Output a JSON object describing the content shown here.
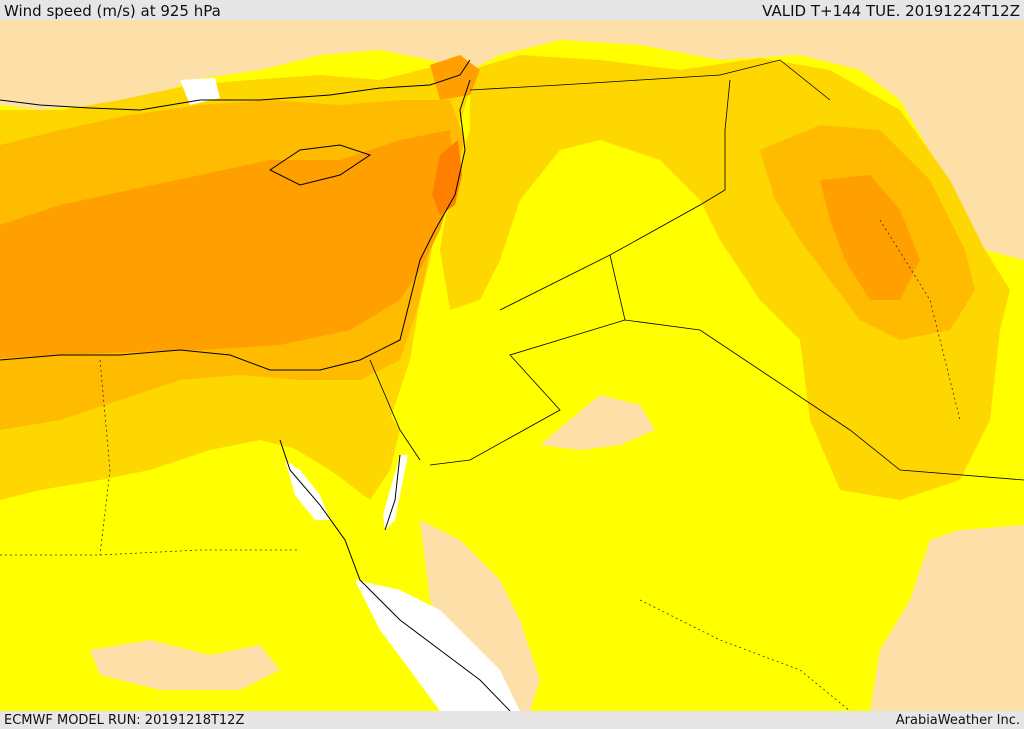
{
  "header": {
    "title": "Wind speed (m/s) at 925 hPa",
    "valid": "VALID T+144 TUE. 20191224T12Z"
  },
  "footer": {
    "model_run": "ECMWF MODEL RUN: 20191218T12Z",
    "credit": "ArabiaWeather Inc."
  },
  "colors": {
    "light": "#fde0a8",
    "yellow": "#ffff00",
    "gold": "#ffd700",
    "amber": "#ffbb00",
    "orange": "#ff9f00",
    "dark_orange": "#ff8000",
    "water_calm": "#ffffff"
  }
}
